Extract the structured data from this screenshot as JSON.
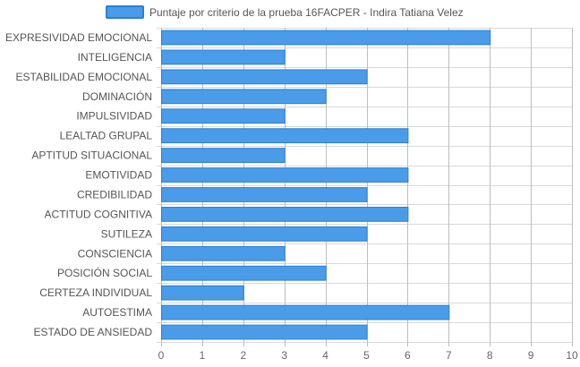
{
  "chart_data": {
    "type": "bar",
    "orientation": "horizontal",
    "legend": "top-center",
    "grid": true,
    "xlim": [
      0,
      10
    ],
    "x_ticks": [
      "0",
      "1",
      "2",
      "3",
      "4",
      "5",
      "6",
      "7",
      "8",
      "9",
      "10"
    ],
    "categories": [
      "EXPRESIVIDAD EMOCIONAL",
      "INTELIGENCIA",
      "ESTABILIDAD EMOCIONAL",
      "DOMINACIÓN",
      "IMPULSIVIDAD",
      "LEALTAD GRUPAL",
      "APTITUD SITUACIONAL",
      "EMOTIVIDAD",
      "CREDIBILIDAD",
      "ACTITUD COGNITIVA",
      "SUTILEZA",
      "CONSCIENCIA",
      "POSICIÓN SOCIAL",
      "CERTEZA INDIVIDUAL",
      "AUTOESTIMA",
      "ESTADO DE ANSIEDAD"
    ],
    "series": [
      {
        "name": "Puntaje por criterio de la prueba 16FACPER - Indira Tatiana Velez",
        "color": "#4a9ce8",
        "border_color": "#2a7fd4",
        "values": [
          8,
          3,
          5,
          4,
          3,
          6,
          3,
          6,
          5,
          6,
          5,
          3,
          4,
          2,
          7,
          5
        ]
      }
    ]
  }
}
